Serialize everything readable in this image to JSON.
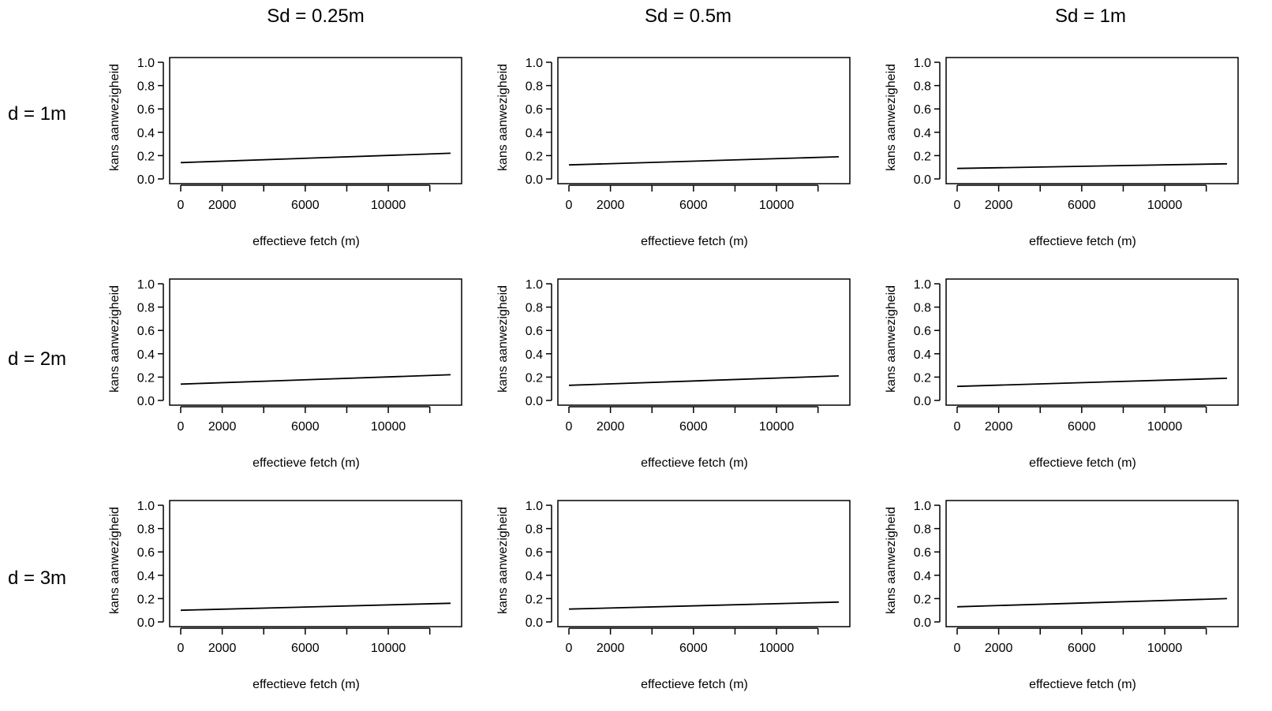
{
  "figure": {
    "column_titles": [
      "Sd = 0.25m",
      "Sd = 0.5m",
      "Sd = 1m"
    ],
    "row_labels": [
      "d = 1m",
      "d = 2m",
      "d = 3m"
    ]
  },
  "colors": {
    "background": "#ffffff",
    "ink": "#000000"
  },
  "chart_data": [
    {
      "type": "line",
      "row": 0,
      "col": 0,
      "xlabel": "effectieve fetch (m)",
      "ylabel": "kans aanwezigheid",
      "xlim": [
        0,
        13000
      ],
      "ylim": [
        0,
        1
      ],
      "x_ticks": [
        0,
        2000,
        4000,
        6000,
        8000,
        10000,
        12000
      ],
      "x_tick_labels": [
        "0",
        "2000",
        "",
        "6000",
        "",
        "10000",
        ""
      ],
      "y_ticks": [
        0,
        0.2,
        0.4,
        0.6,
        0.8,
        1.0
      ],
      "y_tick_labels": [
        "0.0",
        "0.2",
        "0.4",
        "0.6",
        "0.8",
        "1.0"
      ],
      "x": [
        0,
        13000
      ],
      "y": [
        0.14,
        0.22
      ],
      "grid": false
    },
    {
      "type": "line",
      "row": 0,
      "col": 1,
      "xlabel": "effectieve fetch (m)",
      "ylabel": "kans aanwezigheid",
      "xlim": [
        0,
        13000
      ],
      "ylim": [
        0,
        1
      ],
      "x_ticks": [
        0,
        2000,
        4000,
        6000,
        8000,
        10000,
        12000
      ],
      "x_tick_labels": [
        "0",
        "2000",
        "",
        "6000",
        "",
        "10000",
        ""
      ],
      "y_ticks": [
        0,
        0.2,
        0.4,
        0.6,
        0.8,
        1.0
      ],
      "y_tick_labels": [
        "0.0",
        "0.2",
        "0.4",
        "0.6",
        "0.8",
        "1.0"
      ],
      "x": [
        0,
        13000
      ],
      "y": [
        0.12,
        0.19
      ],
      "grid": false
    },
    {
      "type": "line",
      "row": 0,
      "col": 2,
      "xlabel": "effectieve fetch (m)",
      "ylabel": "kans aanwezigheid",
      "xlim": [
        0,
        13000
      ],
      "ylim": [
        0,
        1
      ],
      "x_ticks": [
        0,
        2000,
        4000,
        6000,
        8000,
        10000,
        12000
      ],
      "x_tick_labels": [
        "0",
        "2000",
        "",
        "6000",
        "",
        "10000",
        ""
      ],
      "y_ticks": [
        0,
        0.2,
        0.4,
        0.6,
        0.8,
        1.0
      ],
      "y_tick_labels": [
        "0.0",
        "0.2",
        "0.4",
        "0.6",
        "0.8",
        "1.0"
      ],
      "x": [
        0,
        13000
      ],
      "y": [
        0.09,
        0.13
      ],
      "grid": false
    },
    {
      "type": "line",
      "row": 1,
      "col": 0,
      "xlabel": "effectieve fetch (m)",
      "ylabel": "kans aanwezigheid",
      "xlim": [
        0,
        13000
      ],
      "ylim": [
        0,
        1
      ],
      "x_ticks": [
        0,
        2000,
        4000,
        6000,
        8000,
        10000,
        12000
      ],
      "x_tick_labels": [
        "0",
        "2000",
        "",
        "6000",
        "",
        "10000",
        ""
      ],
      "y_ticks": [
        0,
        0.2,
        0.4,
        0.6,
        0.8,
        1.0
      ],
      "y_tick_labels": [
        "0.0",
        "0.2",
        "0.4",
        "0.6",
        "0.8",
        "1.0"
      ],
      "x": [
        0,
        13000
      ],
      "y": [
        0.14,
        0.22
      ],
      "grid": false
    },
    {
      "type": "line",
      "row": 1,
      "col": 1,
      "xlabel": "effectieve fetch (m)",
      "ylabel": "kans aanwezigheid",
      "xlim": [
        0,
        13000
      ],
      "ylim": [
        0,
        1
      ],
      "x_ticks": [
        0,
        2000,
        4000,
        6000,
        8000,
        10000,
        12000
      ],
      "x_tick_labels": [
        "0",
        "2000",
        "",
        "6000",
        "",
        "10000",
        ""
      ],
      "y_ticks": [
        0,
        0.2,
        0.4,
        0.6,
        0.8,
        1.0
      ],
      "y_tick_labels": [
        "0.0",
        "0.2",
        "0.4",
        "0.6",
        "0.8",
        "1.0"
      ],
      "x": [
        0,
        13000
      ],
      "y": [
        0.13,
        0.21
      ],
      "grid": false
    },
    {
      "type": "line",
      "row": 1,
      "col": 2,
      "xlabel": "effectieve fetch (m)",
      "ylabel": "kans aanwezigheid",
      "xlim": [
        0,
        13000
      ],
      "ylim": [
        0,
        1
      ],
      "x_ticks": [
        0,
        2000,
        4000,
        6000,
        8000,
        10000,
        12000
      ],
      "x_tick_labels": [
        "0",
        "2000",
        "",
        "6000",
        "",
        "10000",
        ""
      ],
      "y_ticks": [
        0,
        0.2,
        0.4,
        0.6,
        0.8,
        1.0
      ],
      "y_tick_labels": [
        "0.0",
        "0.2",
        "0.4",
        "0.6",
        "0.8",
        "1.0"
      ],
      "x": [
        0,
        13000
      ],
      "y": [
        0.12,
        0.19
      ],
      "grid": false
    },
    {
      "type": "line",
      "row": 2,
      "col": 0,
      "xlabel": "effectieve fetch (m)",
      "ylabel": "kans aanwezigheid",
      "xlim": [
        0,
        13000
      ],
      "ylim": [
        0,
        1
      ],
      "x_ticks": [
        0,
        2000,
        4000,
        6000,
        8000,
        10000,
        12000
      ],
      "x_tick_labels": [
        "0",
        "2000",
        "",
        "6000",
        "",
        "10000",
        ""
      ],
      "y_ticks": [
        0,
        0.2,
        0.4,
        0.6,
        0.8,
        1.0
      ],
      "y_tick_labels": [
        "0.0",
        "0.2",
        "0.4",
        "0.6",
        "0.8",
        "1.0"
      ],
      "x": [
        0,
        13000
      ],
      "y": [
        0.1,
        0.16
      ],
      "grid": false
    },
    {
      "type": "line",
      "row": 2,
      "col": 1,
      "xlabel": "effectieve fetch (m)",
      "ylabel": "kans aanwezigheid",
      "xlim": [
        0,
        13000
      ],
      "ylim": [
        0,
        1
      ],
      "x_ticks": [
        0,
        2000,
        4000,
        6000,
        8000,
        10000,
        12000
      ],
      "x_tick_labels": [
        "0",
        "2000",
        "",
        "6000",
        "",
        "10000",
        ""
      ],
      "y_ticks": [
        0,
        0.2,
        0.4,
        0.6,
        0.8,
        1.0
      ],
      "y_tick_labels": [
        "0.0",
        "0.2",
        "0.4",
        "0.6",
        "0.8",
        "1.0"
      ],
      "x": [
        0,
        13000
      ],
      "y": [
        0.11,
        0.17
      ],
      "grid": false
    },
    {
      "type": "line",
      "row": 2,
      "col": 2,
      "xlabel": "effectieve fetch (m)",
      "ylabel": "kans aanwezigheid",
      "xlim": [
        0,
        13000
      ],
      "ylim": [
        0,
        1
      ],
      "x_ticks": [
        0,
        2000,
        4000,
        6000,
        8000,
        10000,
        12000
      ],
      "x_tick_labels": [
        "0",
        "2000",
        "",
        "6000",
        "",
        "10000",
        ""
      ],
      "y_ticks": [
        0,
        0.2,
        0.4,
        0.6,
        0.8,
        1.0
      ],
      "y_tick_labels": [
        "0.0",
        "0.2",
        "0.4",
        "0.6",
        "0.8",
        "1.0"
      ],
      "x": [
        0,
        13000
      ],
      "y": [
        0.13,
        0.2
      ],
      "grid": false
    }
  ]
}
